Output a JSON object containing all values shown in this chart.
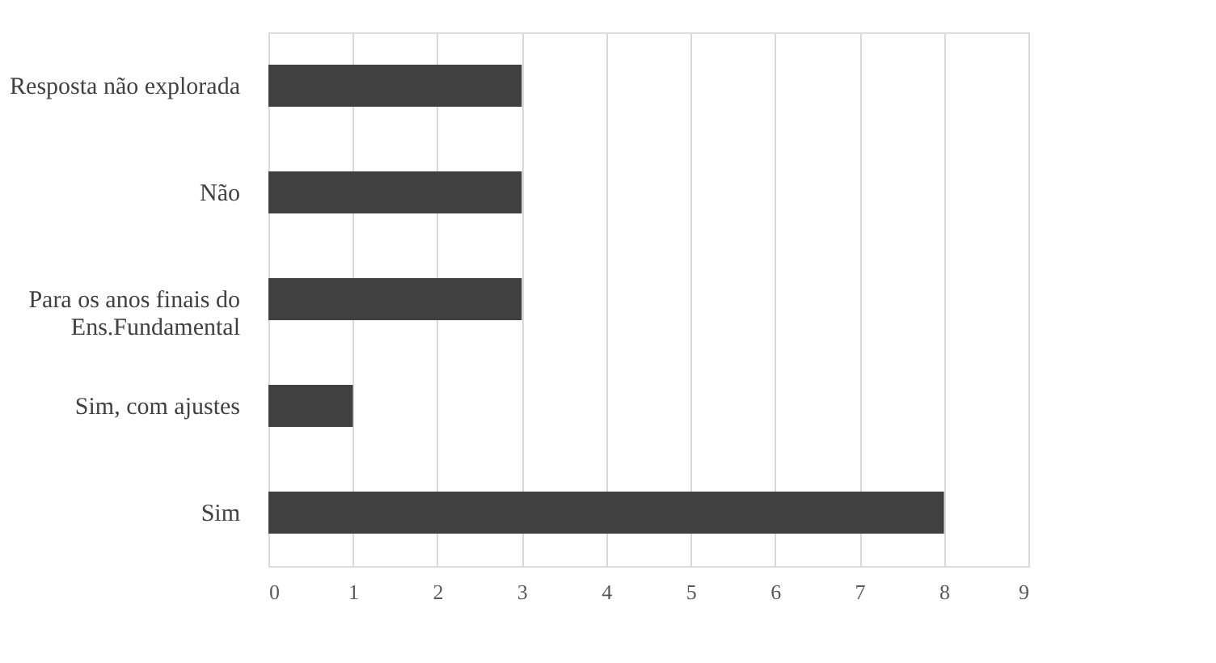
{
  "chart_data": {
    "type": "bar",
    "orientation": "horizontal",
    "categories": [
      "Resposta não explorada",
      "Não",
      "Para os anos finais do\nEns.Fundamental",
      "Sim, com ajustes",
      "Sim"
    ],
    "values": [
      3,
      3,
      3,
      1,
      8
    ],
    "color": "#404040",
    "xlim": [
      0,
      9
    ],
    "xticks": [
      0,
      1,
      2,
      3,
      4,
      5,
      6,
      7,
      8,
      9
    ],
    "grid": "x"
  }
}
